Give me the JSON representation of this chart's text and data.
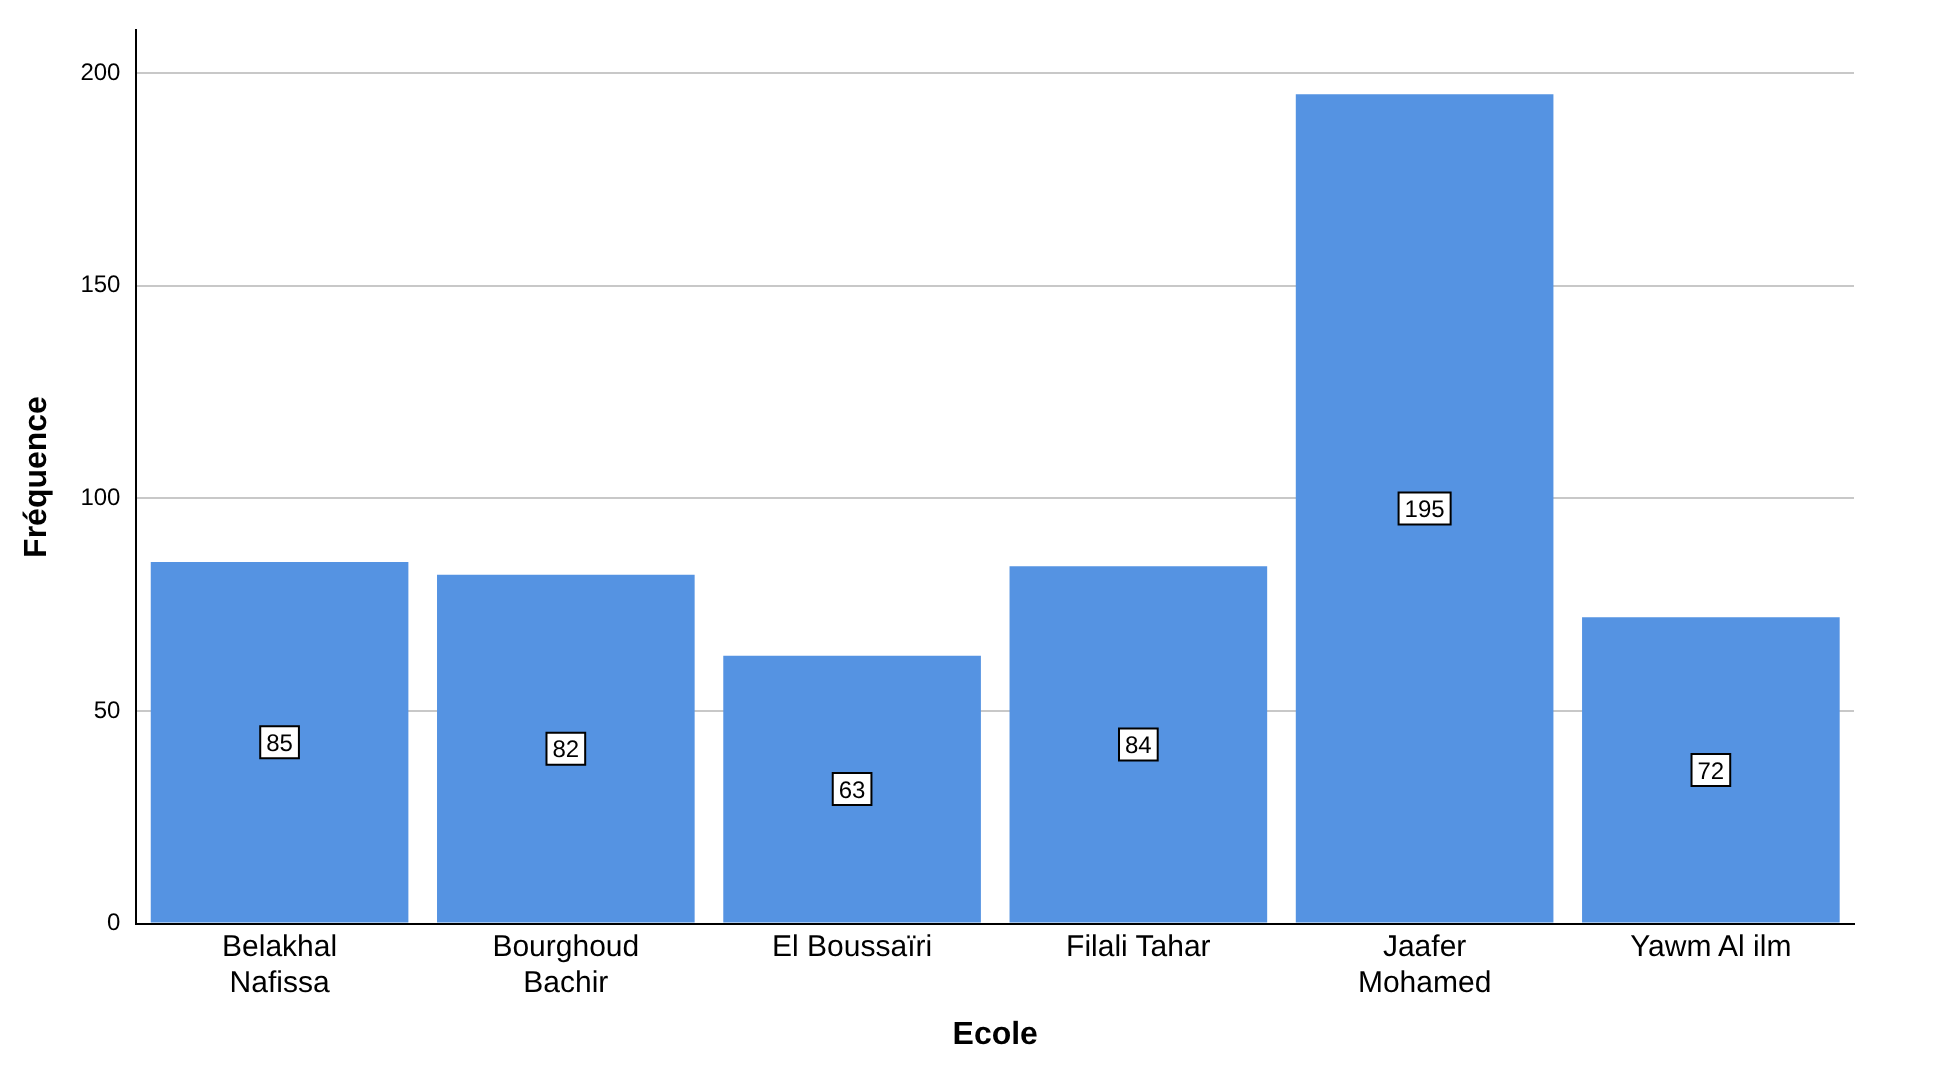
{
  "chart_data": {
    "type": "bar",
    "xlabel": "Ecole",
    "ylabel": "Fréquence",
    "categories": [
      "Belakhal Nafissa",
      "Bourghoud Bachir",
      "El Boussaïri",
      "Filali Tahar",
      "Jaafer Mohamed",
      "Yawm Al ilm"
    ],
    "values": [
      85,
      82,
      63,
      84,
      195,
      72
    ],
    "color": "#5593e2",
    "ylim": [
      0,
      210
    ],
    "yticks": [
      0,
      50,
      100,
      150,
      200
    ],
    "grid": "y",
    "data_labels": true,
    "legend": false
  }
}
